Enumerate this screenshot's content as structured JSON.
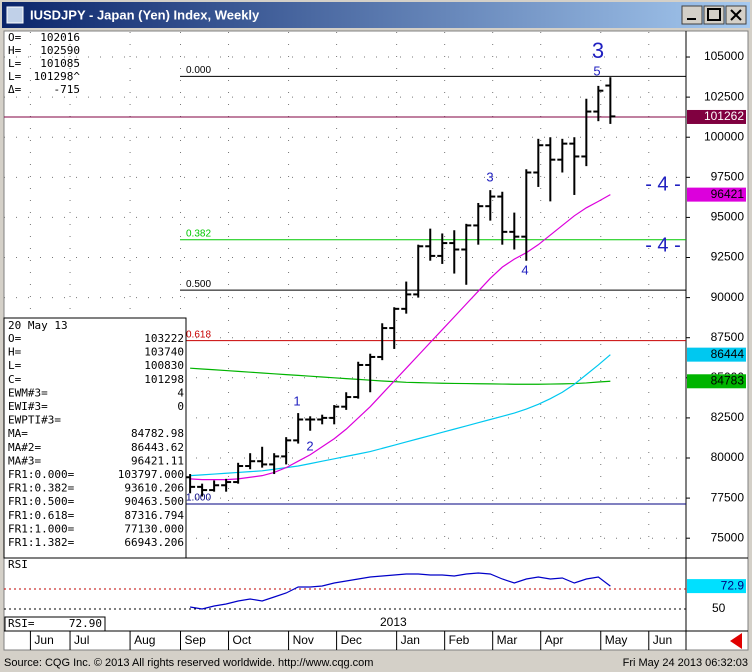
{
  "chart_data": {
    "type": "ohlc",
    "title": "IUSDJPY - Japan (Yen) Index, Weekly",
    "xlim": [
      -15.5,
      41.3
    ],
    "xticks": [
      {
        "value": -13.3,
        "label": "Jun"
      },
      {
        "value": -10,
        "label": "Jul"
      },
      {
        "value": -5,
        "label": "Aug"
      },
      {
        "value": -0.8,
        "label": "Sep"
      },
      {
        "value": 3.2,
        "label": "Oct"
      },
      {
        "value": 8.2,
        "label": "Nov"
      },
      {
        "value": 12.2,
        "label": "Dec"
      },
      {
        "value": 17.2,
        "label": "Jan"
      },
      {
        "value": 21.2,
        "label": "Feb"
      },
      {
        "value": 25.2,
        "label": "Mar"
      },
      {
        "value": 29.2,
        "label": "Apr"
      },
      {
        "value": 34.2,
        "label": "May"
      },
      {
        "value": 38.2,
        "label": "Jun"
      }
    ],
    "year_label": "2013",
    "ylim": [
      73890,
      106560
    ],
    "yticks": [
      75000,
      77500,
      80000,
      82500,
      85000,
      87500,
      90000,
      92500,
      95000,
      97500,
      100000,
      102500,
      105000
    ],
    "grid": true,
    "bar_color": "#000000",
    "ohlc": {
      "open": [
        78800,
        78200,
        78000,
        78300,
        78500,
        79500,
        79800,
        79600,
        80100,
        81100,
        82400,
        82400,
        82500,
        83200,
        83800,
        85800,
        86300,
        88100,
        89300,
        90200,
        93200,
        92600,
        93400,
        93000,
        94500,
        95700,
        96300,
        94100,
        93800,
        97800,
        99500,
        98600,
        99600,
        98800,
        101600,
        103222
      ],
      "high": [
        79000,
        78400,
        78600,
        78700,
        79700,
        80300,
        80700,
        80300,
        81300,
        82800,
        82600,
        82700,
        83300,
        84100,
        86000,
        86500,
        88400,
        89400,
        91000,
        93300,
        94300,
        94000,
        94200,
        94600,
        95900,
        96700,
        96600,
        95300,
        98000,
        99900,
        100000,
        99900,
        100000,
        102400,
        103200,
        103740
      ],
      "low": [
        77800,
        77600,
        77900,
        77900,
        78400,
        79300,
        79400,
        79000,
        79600,
        80900,
        81700,
        82100,
        82100,
        83000,
        83700,
        84100,
        86100,
        86800,
        89000,
        90000,
        92300,
        92100,
        91500,
        90800,
        93300,
        94800,
        93300,
        93000,
        92300,
        96900,
        96000,
        97800,
        96400,
        98200,
        101000,
        100830
      ],
      "close": [
        78200,
        78000,
        78300,
        78500,
        79500,
        79800,
        79600,
        80100,
        81100,
        82400,
        82400,
        82500,
        83200,
        83800,
        85800,
        86300,
        88100,
        89300,
        90200,
        93200,
        92600,
        93400,
        93000,
        94500,
        95700,
        96300,
        94100,
        93800,
        97800,
        99500,
        98600,
        99600,
        98800,
        101600,
        102900,
        101298
      ]
    },
    "series": [
      {
        "color": "#00b400",
        "axis_label": 84783,
        "values": [
          85600,
          85550,
          85500,
          85450,
          85400,
          85350,
          85300,
          85250,
          85200,
          85150,
          85100,
          85050,
          85000,
          84950,
          84900,
          84850,
          84800,
          84760,
          84720,
          84700,
          84680,
          84660,
          84650,
          84640,
          84630,
          84620,
          84610,
          84600,
          84600,
          84600,
          84610,
          84620,
          84640,
          84680,
          84740,
          84782.98
        ]
      },
      {
        "color": "#00c8f0",
        "axis_label": 86444,
        "values": [
          78900,
          78950,
          79000,
          79050,
          79100,
          79150,
          79200,
          79300,
          79400,
          79500,
          79650,
          79800,
          79950,
          80100,
          80250,
          80400,
          80600,
          80800,
          81000,
          81200,
          81400,
          81600,
          81800,
          82000,
          82200,
          82400,
          82600,
          82800,
          83050,
          83350,
          83700,
          84100,
          84600,
          85200,
          85800,
          86443.62
        ]
      },
      {
        "color": "#dc00dc",
        "axis_label": 96421,
        "values": [
          78700,
          78650,
          78650,
          78650,
          78700,
          78800,
          78900,
          79100,
          79400,
          79800,
          80200,
          80700,
          81200,
          81800,
          82500,
          83200,
          84000,
          84800,
          85600,
          86400,
          87200,
          88000,
          88800,
          89600,
          90400,
          91200,
          91900,
          92400,
          92800,
          93300,
          93900,
          94500,
          95100,
          95600,
          96000,
          96421.11
        ]
      }
    ],
    "fib_levels": [
      {
        "label": "0.000",
        "value": 103797,
        "color": "#000000"
      },
      {
        "label": "0.382",
        "value": 93610,
        "color": "#00c800"
      },
      {
        "label": "0.500",
        "value": 90463,
        "color": "#000000"
      },
      {
        "label": "0.618",
        "value": 87317,
        "color": "#c80000"
      },
      {
        "label": "1.000",
        "value": 77130,
        "color": "#000080"
      }
    ],
    "current_price": {
      "value": 101262,
      "color": "#800040"
    },
    "annotations": [
      "3",
      "5",
      "3",
      "4",
      "1",
      "2",
      "- 4 -",
      "- 4 -"
    ],
    "readout": [
      {
        "label": "O=",
        "value": 102016
      },
      {
        "label": "H=",
        "value": 102590
      },
      {
        "label": "L=",
        "value": 101085
      },
      {
        "label": "L=",
        "value": "101298^"
      },
      {
        "label": "Δ=",
        "value": -715
      }
    ],
    "data_box": {
      "date": "20 May 13",
      "rows": [
        {
          "label": "O=",
          "value": "103222"
        },
        {
          "label": "H=",
          "value": "103740"
        },
        {
          "label": "L=",
          "value": "100830"
        },
        {
          "label": "C=",
          "value": "101298"
        },
        {
          "label": "EWM#3=",
          "value": "4"
        },
        {
          "label": "EWI#3=",
          "value": "0"
        },
        {
          "label": "EWPTI#3="
        },
        {
          "label": "MA=",
          "value": "84782.98"
        },
        {
          "label": "MA#2=",
          "value": "86443.62"
        },
        {
          "label": "MA#3=",
          "value": "96421.11"
        },
        {
          "label": "FR1:0.000=",
          "value": "103797.000"
        },
        {
          "label": "FR1:0.382=",
          "value": "93610.206"
        },
        {
          "label": "FR1:0.500=",
          "value": "90463.500"
        },
        {
          "label": "FR1:0.618=",
          "value": "87316.794"
        },
        {
          "label": "FR1:1.000=",
          "value": "77130.000"
        },
        {
          "label": "FR1:1.382=",
          "value": "66943.206"
        }
      ]
    },
    "rsi": {
      "title": "RSI",
      "color": "#0000c8",
      "ylim": [
        29,
        101
      ],
      "yticks": [
        50
      ],
      "ref_line": 70,
      "values": [
        52,
        50,
        53,
        55,
        58,
        60,
        58,
        62,
        66,
        72,
        72,
        73,
        76,
        78,
        80,
        82,
        83,
        84,
        85,
        85,
        84,
        84,
        83,
        85,
        86,
        85,
        80,
        76,
        80,
        82,
        80,
        81,
        76,
        80,
        82,
        72.9
      ],
      "axis_label": "72.9",
      "readout_label": "RSI=",
      "readout_value": "72.90"
    },
    "footer": {
      "source": "Source: CQG Inc. © 2013 All rights reserved worldwide. http://www.cqg.com",
      "timestamp": "Fri May 24 2013 06:32:03"
    }
  }
}
